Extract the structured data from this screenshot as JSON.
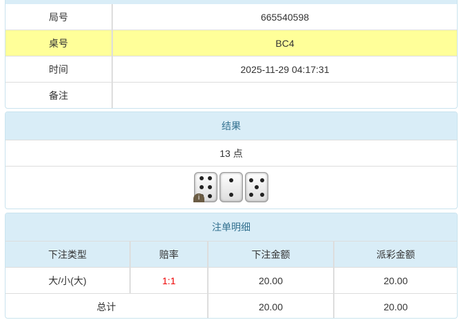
{
  "info": {
    "rows": [
      {
        "label": "局号",
        "value": "665540598"
      },
      {
        "label": "桌号",
        "value": "BC4"
      },
      {
        "label": "时间",
        "value": "2025-11-29 04:17:31"
      },
      {
        "label": "备注",
        "value": ""
      }
    ]
  },
  "result": {
    "title": "结果",
    "points": "13 点",
    "dice": [
      6,
      2,
      5
    ],
    "badge": "i"
  },
  "bets": {
    "title": "注单明细",
    "headers": [
      "下注类型",
      "赔率",
      "下注金额",
      "派彩金额"
    ],
    "rows": [
      {
        "type": "大/小(大)",
        "odds": "1:1",
        "amount": "20.00",
        "payout": "20.00"
      }
    ],
    "total": {
      "label": "总计",
      "amount": "20.00",
      "payout": "20.00"
    }
  },
  "colors": {
    "header_bg": "#d9edf7",
    "highlight": "#ffff99",
    "odds": "#ee0000"
  }
}
